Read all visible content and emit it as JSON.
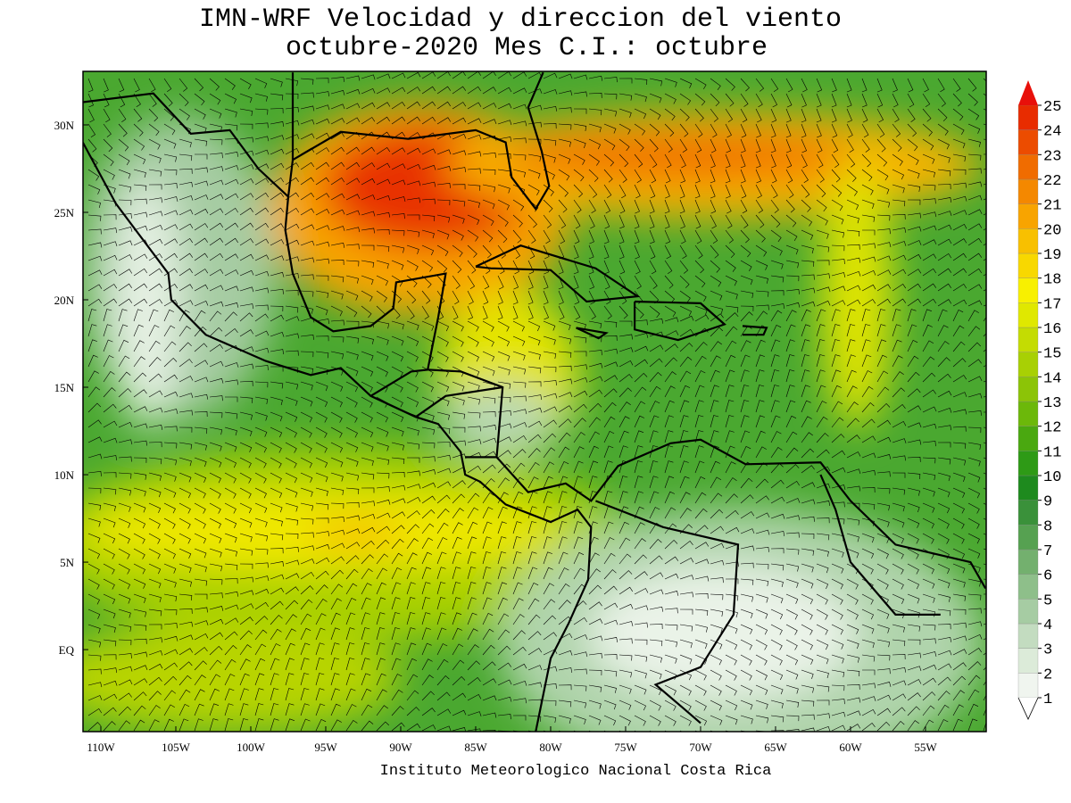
{
  "title": [
    "IMN-WRF Velocidad y direccion del viento",
    "octubre-2020 Mes C.I.: octubre"
  ],
  "footer": "Instituto Meteorologico Nacional Costa Rica",
  "map": {
    "xlim": [
      -111.19,
      -50.95
    ],
    "ylim": [
      -4.69,
      33.06
    ],
    "xticks": [
      {
        "value": -110,
        "label": "110W"
      },
      {
        "value": -105,
        "label": "105W"
      },
      {
        "value": -100,
        "label": "100W"
      },
      {
        "value": -95,
        "label": "95W"
      },
      {
        "value": -90,
        "label": "90W"
      },
      {
        "value": -85,
        "label": "85W"
      },
      {
        "value": -80,
        "label": "80W"
      },
      {
        "value": -75,
        "label": "75W"
      },
      {
        "value": -70,
        "label": "70W"
      },
      {
        "value": -65,
        "label": "65W"
      },
      {
        "value": -60,
        "label": "60W"
      },
      {
        "value": -55,
        "label": "55W"
      }
    ],
    "yticks": [
      {
        "value": 30,
        "label": "30N"
      },
      {
        "value": 25,
        "label": "25N"
      },
      {
        "value": 20,
        "label": "20N"
      },
      {
        "value": 15,
        "label": "15N"
      },
      {
        "value": 10,
        "label": "10N"
      },
      {
        "value": 5,
        "label": "5N"
      },
      {
        "value": 0,
        "label": "EQ"
      }
    ]
  },
  "colorbar": {
    "levels": [
      1,
      2,
      3,
      4,
      5,
      6,
      7,
      8,
      9,
      10,
      11,
      12,
      13,
      14,
      15,
      16,
      17,
      18,
      19,
      20,
      21,
      22,
      23,
      24,
      25
    ],
    "colors": [
      "#f0f5ef",
      "#dcebd9",
      "#c3dcc0",
      "#a6cca3",
      "#8ebf8a",
      "#73b06e",
      "#56a151",
      "#3a913a",
      "#1e8a1e",
      "#2e9a16",
      "#4aa810",
      "#6cb80a",
      "#8cc407",
      "#a8d004",
      "#c4dc02",
      "#e0e800",
      "#f8f000",
      "#f8d800",
      "#f8c000",
      "#f8a400",
      "#f48800",
      "#f06c00",
      "#ec4c00",
      "#e82c00",
      "#e8100a"
    ]
  }
}
